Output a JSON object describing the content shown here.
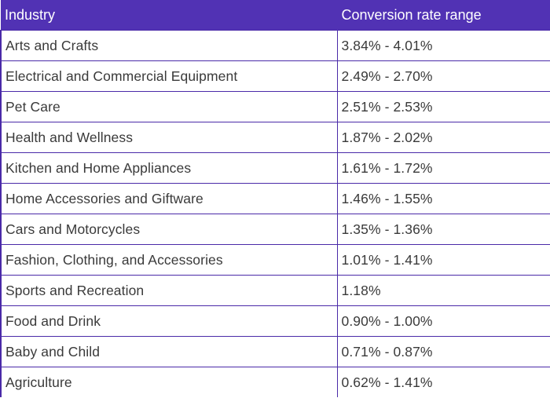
{
  "header": {
    "industry": "Industry",
    "conversion": "Conversion rate range"
  },
  "rows": [
    {
      "industry": "Arts and Crafts",
      "range": "3.84% - 4.01%"
    },
    {
      "industry": "Electrical and Commercial Equipment",
      "range": "2.49% - 2.70%"
    },
    {
      "industry": "Pet Care",
      "range": "2.51% - 2.53%"
    },
    {
      "industry": "Health and Wellness",
      "range": "1.87% - 2.02%"
    },
    {
      "industry": "Kitchen and Home Appliances",
      "range": "1.61% - 1.72%"
    },
    {
      "industry": "Home Accessories and Giftware",
      "range": "1.46% - 1.55%"
    },
    {
      "industry": "Cars and Motorcycles",
      "range": "1.35% - 1.36%"
    },
    {
      "industry": "Fashion, Clothing, and Accessories",
      "range": "1.01% - 1.41%"
    },
    {
      "industry": "Sports and Recreation",
      "range": "1.18%"
    },
    {
      "industry": "Food and Drink",
      "range": "0.90% - 1.00%"
    },
    {
      "industry": "Baby and Child",
      "range": "0.71% - 0.87%"
    },
    {
      "industry": "Agriculture",
      "range": "0.62% - 1.41%"
    }
  ],
  "colors": {
    "header_bg": "#5132b4",
    "border": "#4a2aa8",
    "text": "#3a3a3a"
  }
}
